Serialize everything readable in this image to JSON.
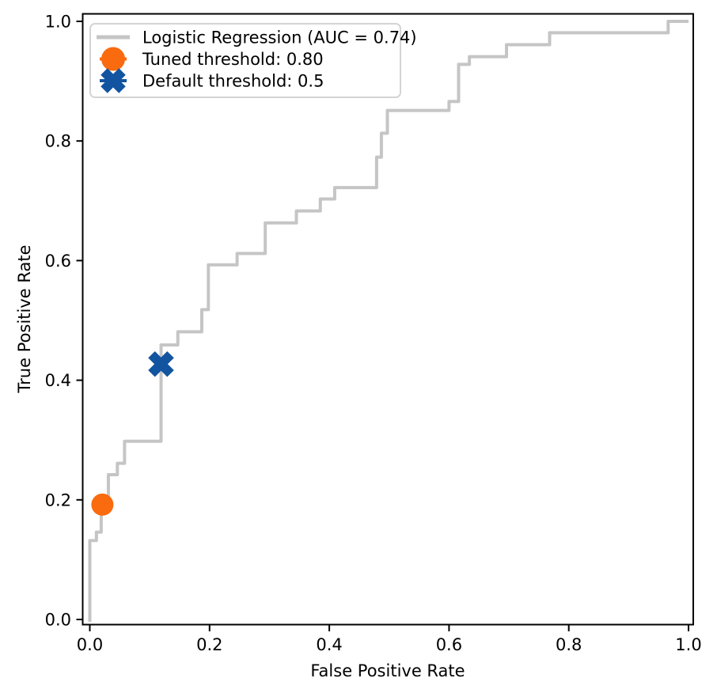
{
  "chart_data": {
    "type": "line",
    "subtype": "roc-step-curve",
    "title": "",
    "xlabel": "False Positive Rate",
    "ylabel": "True Positive Rate",
    "xlim": [
      -0.012,
      1.012
    ],
    "ylim": [
      -0.012,
      1.012
    ],
    "x_ticks": [
      0.0,
      0.2,
      0.4,
      0.6,
      0.8,
      1.0
    ],
    "y_ticks": [
      0.0,
      0.2,
      0.4,
      0.6,
      0.8,
      1.0
    ],
    "grid": false,
    "legend_position": "upper left",
    "series": [
      {
        "name": "Logistic Regression (AUC = 0.74)",
        "auc": 0.74,
        "color": "#c5c5c5",
        "step_vertices": [
          [
            0.0,
            -0.004
          ],
          [
            0.0,
            0.132
          ],
          [
            0.011,
            0.132
          ],
          [
            0.011,
            0.146
          ],
          [
            0.019,
            0.146
          ],
          [
            0.019,
            0.203
          ],
          [
            0.031,
            0.203
          ],
          [
            0.031,
            0.242
          ],
          [
            0.046,
            0.242
          ],
          [
            0.046,
            0.261
          ],
          [
            0.058,
            0.261
          ],
          [
            0.058,
            0.298
          ],
          [
            0.119,
            0.298
          ],
          [
            0.119,
            0.459
          ],
          [
            0.147,
            0.459
          ],
          [
            0.147,
            0.481
          ],
          [
            0.187,
            0.481
          ],
          [
            0.187,
            0.518
          ],
          [
            0.198,
            0.518
          ],
          [
            0.198,
            0.593
          ],
          [
            0.246,
            0.593
          ],
          [
            0.246,
            0.612
          ],
          [
            0.293,
            0.612
          ],
          [
            0.293,
            0.663
          ],
          [
            0.345,
            0.663
          ],
          [
            0.345,
            0.683
          ],
          [
            0.385,
            0.683
          ],
          [
            0.385,
            0.703
          ],
          [
            0.409,
            0.703
          ],
          [
            0.409,
            0.722
          ],
          [
            0.479,
            0.722
          ],
          [
            0.479,
            0.773
          ],
          [
            0.487,
            0.773
          ],
          [
            0.487,
            0.813
          ],
          [
            0.497,
            0.813
          ],
          [
            0.497,
            0.851
          ],
          [
            0.6,
            0.851
          ],
          [
            0.6,
            0.866
          ],
          [
            0.616,
            0.866
          ],
          [
            0.616,
            0.928
          ],
          [
            0.634,
            0.928
          ],
          [
            0.634,
            0.941
          ],
          [
            0.696,
            0.941
          ],
          [
            0.696,
            0.961
          ],
          [
            0.768,
            0.961
          ],
          [
            0.768,
            0.981
          ],
          [
            0.966,
            0.981
          ],
          [
            0.966,
            1.0
          ],
          [
            1.0,
            1.0
          ]
        ]
      }
    ],
    "points": [
      {
        "name": "Tuned threshold: 0.80",
        "threshold": 0.8,
        "fpr": 0.021,
        "tpr": 0.192,
        "marker": "circle",
        "color": "#fa6a0e"
      },
      {
        "name": "Default threshold: 0.5",
        "threshold": 0.5,
        "fpr": 0.119,
        "tpr": 0.427,
        "marker": "X",
        "color": "#1254a0"
      }
    ],
    "legend": [
      {
        "label": "Logistic Regression (AUC = 0.74)",
        "swatch": "gray-line"
      },
      {
        "label": "Tuned threshold: 0.80",
        "swatch": "orange-circle"
      },
      {
        "label": "Default threshold: 0.5",
        "swatch": "blue-x"
      }
    ]
  },
  "colors": {
    "curve": "#c5c5c5",
    "tuned_marker": "#fa6a0e",
    "default_marker": "#1254a0",
    "spine": "#000000",
    "legend_border": "#d4d4d4",
    "background": "#ffffff",
    "text": "#000000"
  }
}
